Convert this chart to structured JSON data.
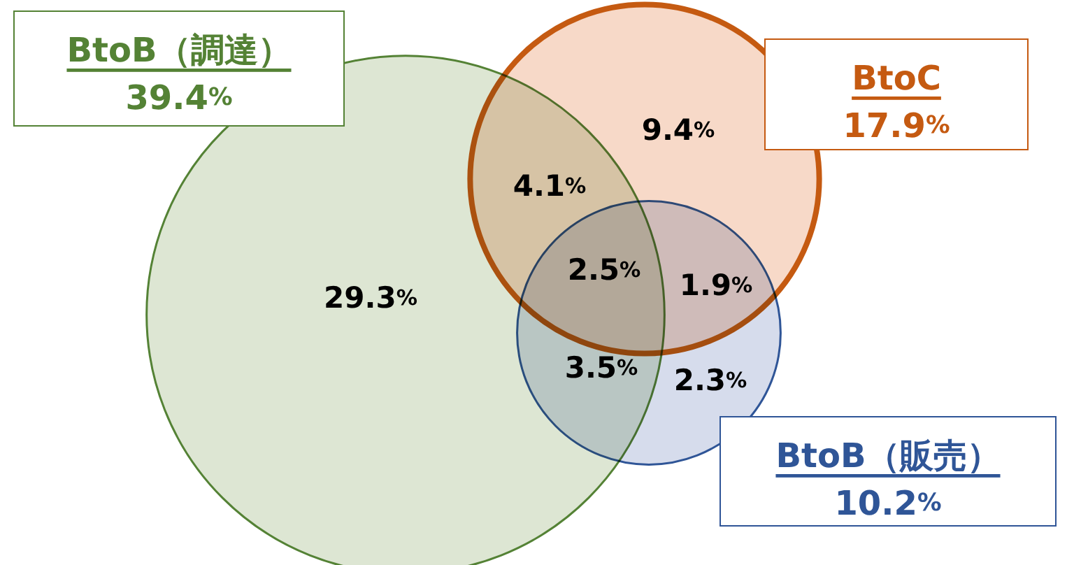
{
  "chart_data": {
    "type": "other",
    "categories": [
      "BtoB（調達）",
      "BtoC",
      "BtoB（販売）"
    ],
    "values": [
      39.4,
      17.9,
      10.2
    ],
    "value_labels": [
      "39.4%",
      "17.9%",
      "10.2%"
    ],
    "colors": [
      "#548235",
      "#c55a11",
      "#2f5597"
    ],
    "annotations": [
      "29.3%",
      "9.4%",
      "4.1%",
      "2.5%",
      "1.9%",
      "3.5%",
      "2.3%"
    ]
  }
}
